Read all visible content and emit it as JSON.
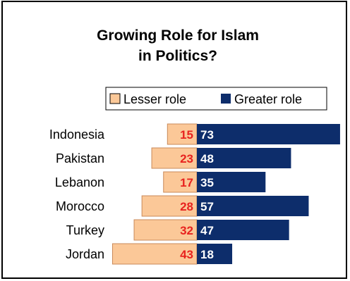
{
  "chart_data": {
    "type": "bar",
    "title": "Growing Role for Islam in Politics?",
    "title_lines": [
      "Growing Role for Islam",
      "in Politics?"
    ],
    "categories": [
      "Indonesia",
      "Pakistan",
      "Lebanon",
      "Morocco",
      "Turkey",
      "Jordan"
    ],
    "series": [
      {
        "name": "Lesser role",
        "values": [
          15,
          23,
          17,
          28,
          32,
          43
        ],
        "color": "#fbc898",
        "label_color": "#e8231f"
      },
      {
        "name": "Greater role",
        "values": [
          73,
          48,
          35,
          57,
          47,
          18
        ],
        "color": "#0d2d6b",
        "label_color": "#ffffff"
      }
    ],
    "orientation": "horizontal-diverging",
    "legend_position": "top-right",
    "grid": false
  }
}
